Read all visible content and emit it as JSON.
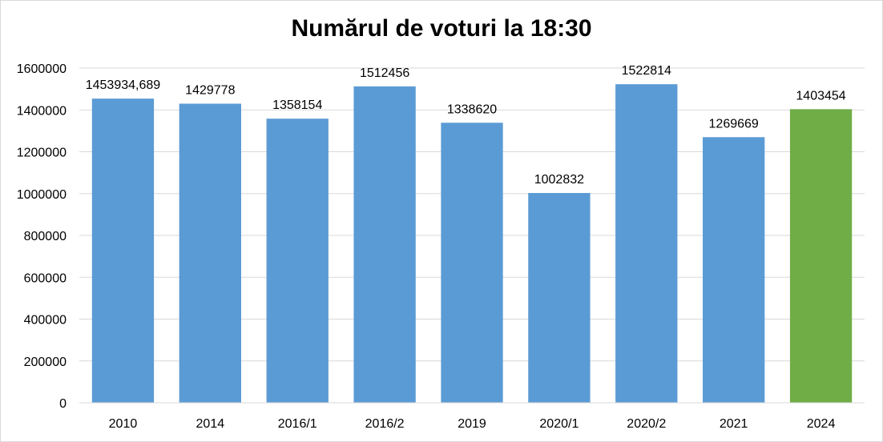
{
  "chart_data": {
    "type": "bar",
    "title": "Numărul de voturi la 18:30",
    "xlabel": "",
    "ylabel": "",
    "categories": [
      "2010",
      "2014",
      "2016/1",
      "2016/2",
      "2019",
      "2020/1",
      "2020/2",
      "2021",
      "2024"
    ],
    "values": [
      1453934.689,
      1429778,
      1358154,
      1512456,
      1338620,
      1002832,
      1522814,
      1269669,
      1403454
    ],
    "data_labels": [
      "1453934,689",
      "1429778",
      "1358154",
      "1512456",
      "1338620",
      "1002832",
      "1522814",
      "1269669",
      "1403454"
    ],
    "y_ticks": [
      0,
      200000,
      400000,
      600000,
      800000,
      1000000,
      1200000,
      1400000,
      1600000
    ],
    "ylim": [
      0,
      1600000
    ],
    "grid": true,
    "legend": "none",
    "colors": {
      "default_bar": "#5b9bd5",
      "highlight_bar": "#70ad47",
      "gridline": "#d9d9d9"
    },
    "highlight_category": "2024"
  }
}
